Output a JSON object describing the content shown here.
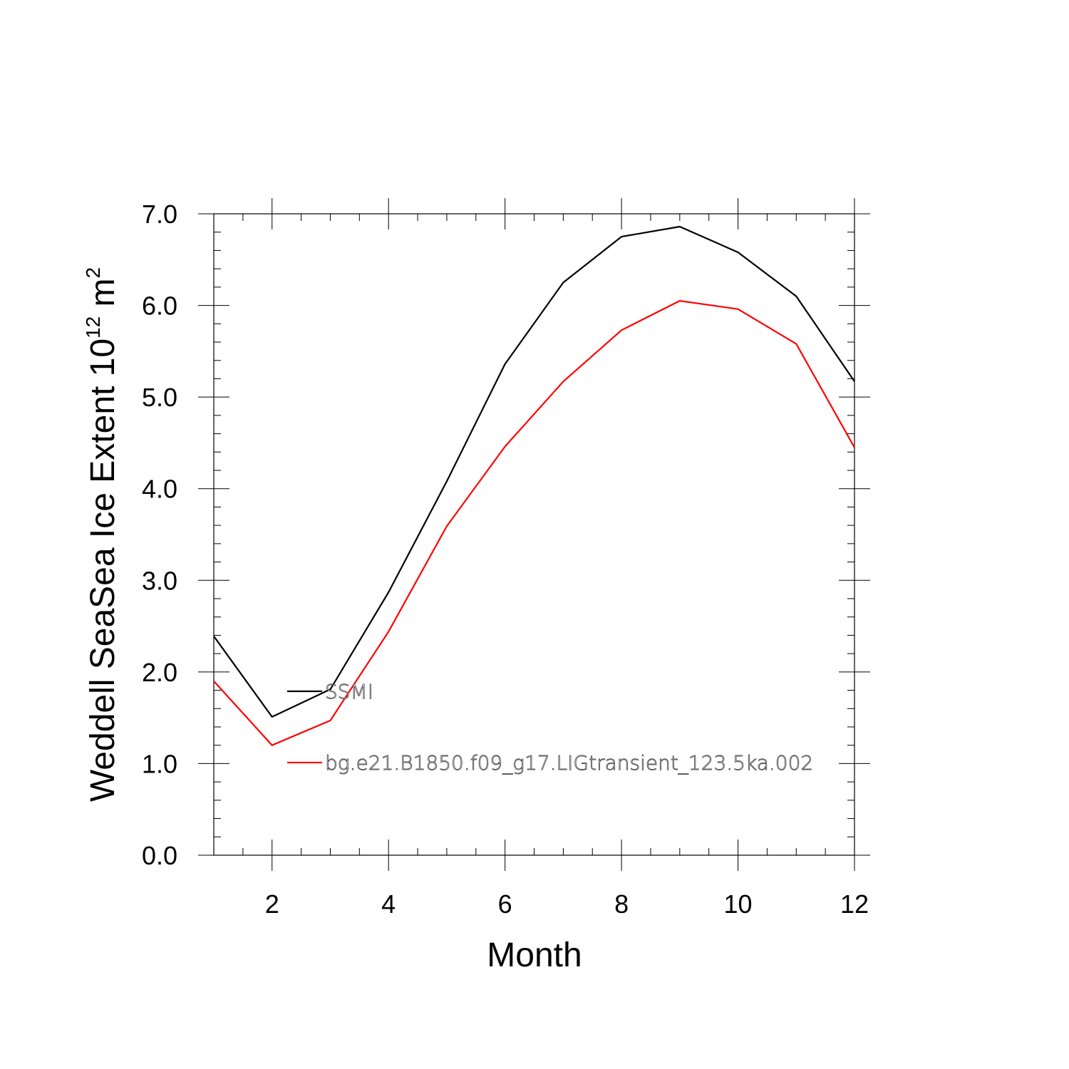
{
  "chart_data": {
    "type": "line",
    "xlabel": "Month",
    "ylabel_main": "Weddell SeaSea Ice Extent 10",
    "ylabel_exp": "12",
    "ylabel_unit": " m",
    "ylabel_unit_exp": "2",
    "xlim": [
      1,
      12
    ],
    "ylim": [
      0,
      7
    ],
    "x_ticks": [
      2,
      4,
      6,
      8,
      10,
      12
    ],
    "x_tick_labels": [
      "2",
      "4",
      "6",
      "8",
      "10",
      "12"
    ],
    "y_ticks": [
      0,
      1,
      2,
      3,
      4,
      5,
      6,
      7
    ],
    "y_tick_labels": [
      "0.0",
      "1.0",
      "2.0",
      "3.0",
      "4.0",
      "5.0",
      "6.0",
      "7.0"
    ],
    "x": [
      1,
      2,
      3,
      4,
      5,
      6,
      7,
      8,
      9,
      10,
      11,
      12
    ],
    "series": [
      {
        "name": "SSMI",
        "color": "#000000",
        "values": [
          2.39,
          1.51,
          1.81,
          2.87,
          4.08,
          5.36,
          6.25,
          6.75,
          6.86,
          6.58,
          6.1,
          5.17
        ]
      },
      {
        "name": "bg.e21.B1850.f09_g17.LIGtransient_123.5ka.002",
        "color": "#ff0000",
        "values": [
          1.9,
          1.2,
          1.47,
          2.44,
          3.59,
          4.46,
          5.17,
          5.73,
          6.05,
          5.96,
          5.58,
          4.45
        ]
      }
    ]
  }
}
